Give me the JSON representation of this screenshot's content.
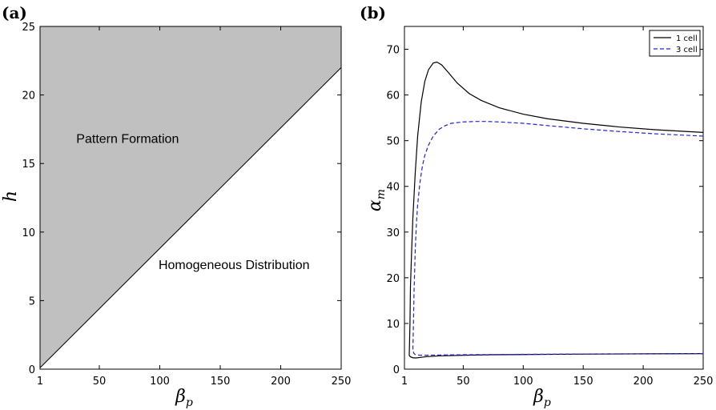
{
  "chart_data": [
    {
      "panel": "(a)",
      "type": "area",
      "xlabel": "β",
      "xlabel_sub": "p",
      "ylabel": "h",
      "xlim": [
        1,
        250
      ],
      "ylim": [
        0,
        25
      ],
      "xticks": [
        1,
        50,
        100,
        150,
        200,
        250
      ],
      "yticks": [
        0,
        5,
        10,
        15,
        20,
        25
      ],
      "boundary": {
        "x": [
          1,
          250
        ],
        "y": [
          0.1,
          22
        ]
      },
      "shaded_region": "above boundary",
      "fill_color": "#c0c0c0",
      "annotations": [
        {
          "text": "Pattern Formation",
          "x": 31,
          "y": 16.5
        },
        {
          "text": "Homogeneous Distribution",
          "x": 99,
          "y": 7.3
        }
      ]
    },
    {
      "panel": "(b)",
      "type": "line",
      "xlabel": "β",
      "xlabel_sub": "p",
      "ylabel": "α",
      "ylabel_sub": "m",
      "xlim": [
        1,
        250
      ],
      "ylim": [
        0,
        75
      ],
      "xticks": [
        1,
        50,
        100,
        150,
        200,
        250
      ],
      "yticks": [
        0,
        10,
        20,
        30,
        40,
        50,
        60,
        70
      ],
      "legend_position": "top-right",
      "series": [
        {
          "name": "1 cell",
          "color": "#000000",
          "style": "solid",
          "upper": {
            "x": [
              5,
              5.6,
              6,
              7,
              8,
              10,
              12,
              15,
              18,
              21,
              25,
              28,
              32,
              38,
              45,
              55,
              65,
              80,
              100,
              120,
              150,
              180,
              210,
              250
            ],
            "y": [
              3,
              10,
              18,
              26,
              33,
              43,
              51,
              58.5,
              63,
              65.5,
              67,
              67.2,
              66.6,
              64.8,
              62.6,
              60.3,
              58.8,
              57.2,
              55.8,
              54.8,
              53.8,
              53,
              52.4,
              51.8
            ]
          },
          "lower": {
            "x": [
              5,
              6,
              8,
              10,
              12,
              15,
              20,
              30,
              50,
              75,
              100,
              150,
              200,
              250
            ],
            "y": [
              3,
              2.7,
              2.5,
              2.45,
              2.5,
              2.6,
              2.75,
              2.9,
              3.05,
              3.15,
              3.2,
              3.3,
              3.35,
              3.4
            ]
          }
        },
        {
          "name": "3 cell",
          "color": "#2222dd",
          "style": "dashed",
          "upper": {
            "x": [
              8,
              8.5,
              9,
              10,
              11,
              12,
              14,
              16,
              18,
              21,
              25,
              30,
              35,
              40,
              50,
              60,
              70,
              80,
              100,
              120,
              150,
              180,
              210,
              250
            ],
            "y": [
              4,
              10,
              17,
              26,
              32,
              36,
              41,
              44.5,
              46.8,
              49,
              51,
              52.5,
              53.3,
              53.8,
              54.1,
              54.2,
              54.2,
              54.1,
              53.8,
              53.3,
              52.6,
              52,
              51.5,
              51
            ]
          },
          "lower": {
            "x": [
              8,
              9,
              10,
              12,
              15,
              20,
              30,
              50,
              75,
              100,
              150,
              200,
              250
            ],
            "y": [
              4,
              3.4,
              3.2,
              3.1,
              3.05,
              3.05,
              3.1,
              3.15,
              3.2,
              3.25,
              3.3,
              3.35,
              3.4
            ]
          }
        }
      ]
    }
  ]
}
